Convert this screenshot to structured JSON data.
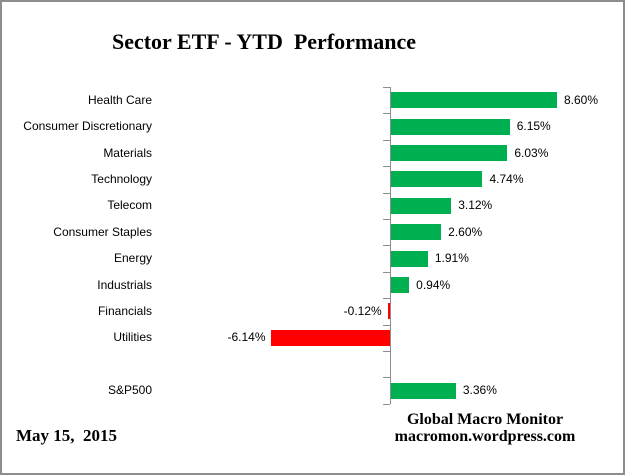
{
  "chart_data": {
    "type": "bar",
    "orientation": "horizontal",
    "title": "Sector ETF - YTD  Performance",
    "categories": [
      "Health Care",
      "Consumer Discretionary",
      "Materials",
      "Technology",
      "Telecom",
      "Consumer Staples",
      "Energy",
      "Industrials",
      "Financials",
      "Utilities",
      "",
      "S&P500"
    ],
    "values": [
      8.6,
      6.15,
      6.03,
      4.74,
      3.12,
      2.6,
      1.91,
      0.94,
      -0.12,
      -6.14,
      null,
      3.36
    ],
    "value_labels": [
      "8.60%",
      "6.15%",
      "6.03%",
      "4.74%",
      "3.12%",
      "2.60%",
      "1.91%",
      "0.94%",
      "-0.12%",
      "-6.14%",
      "",
      "3.36%"
    ],
    "positive_color": "#00B050",
    "negative_color": "#FF0000",
    "axis_color": "#8d8d8d",
    "xlim": [
      -12,
      12.2
    ],
    "grid": "off",
    "legend": "none",
    "notes": "blank category row separates sector bars from S&P500 benchmark bar"
  },
  "footer": {
    "date": "May 15,  2015",
    "brand_line1": "Global Macro Monitor",
    "brand_line2": "macromon.wordpress.com"
  }
}
